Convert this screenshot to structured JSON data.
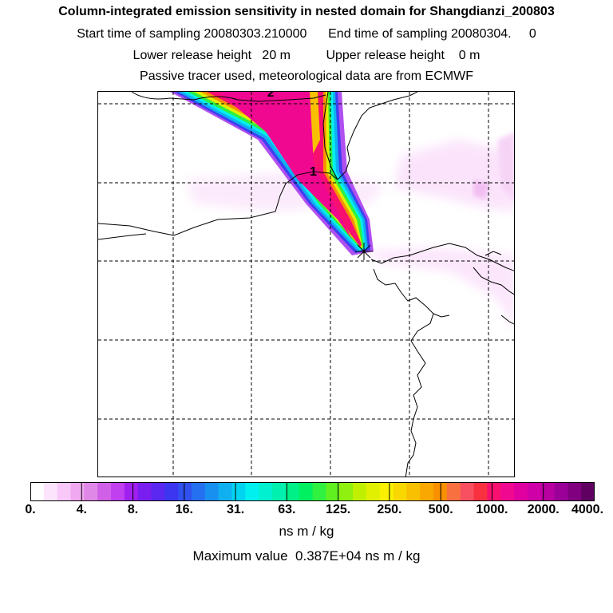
{
  "title": "Column-integrated emission sensitivity in nested domain for Shangdianzi_200803",
  "sampling_line": "Start time of sampling 20080303.210000      End time of sampling 20080304.     0",
  "release_line": "Lower release height   20 m          Upper release height    0 m",
  "tracer_line": "Passive tracer used, meteorological data are from ECMWF",
  "map": {
    "time_labels": [
      "1",
      "2"
    ],
    "receptor_marker": "receptor-star-icon"
  },
  "colorbar": {
    "tick_labels": [
      "0.",
      "4.",
      "8.",
      "16.",
      "31.",
      "63.",
      "125.",
      "250.",
      "500.",
      "1000.",
      "2000.",
      "4000."
    ],
    "colors": [
      "#ffffff",
      "#fce4fc",
      "#f8c8f8",
      "#f0a8f0",
      "#e088e8",
      "#d060e8",
      "#c040f0",
      "#a020f0",
      "#7a1ef0",
      "#5a28f0",
      "#3c36f0",
      "#3050f0",
      "#2470f0",
      "#1890f0",
      "#10b0f0",
      "#00d4f0",
      "#00f0f0",
      "#00f0d0",
      "#00f0b0",
      "#00f088",
      "#00f060",
      "#30f040",
      "#60f020",
      "#90f010",
      "#c0f000",
      "#e0f000",
      "#f8f000",
      "#f8d800",
      "#f8c000",
      "#f8a800",
      "#f89000",
      "#f87040",
      "#f85060",
      "#f83040",
      "#f81070",
      "#f00890",
      "#e000a0",
      "#d000a8",
      "#b800a0",
      "#9a0098",
      "#800080",
      "#600060"
    ]
  },
  "units": "ns m / kg",
  "maximum": "Maximum value  0.387E+04 ns m / kg"
}
